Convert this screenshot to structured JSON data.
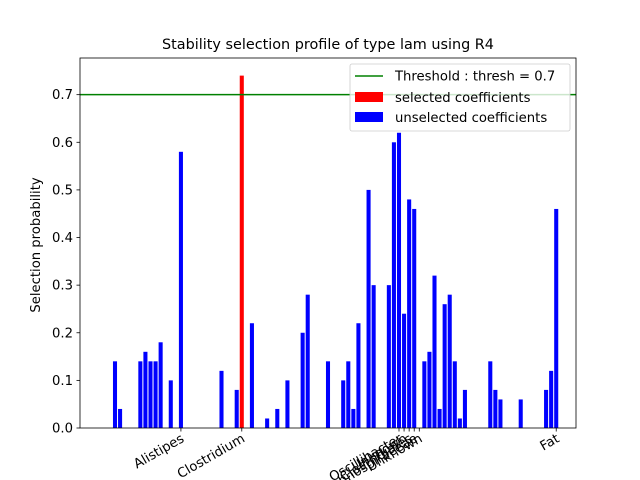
{
  "chart_data": {
    "type": "bar",
    "title": "Stability selection profile of type lam using R4",
    "xlabel": "",
    "ylabel": "Selection probability",
    "ylim": [
      0,
      0.777
    ],
    "xlim": [
      -6.9,
      90.9
    ],
    "yticks": [
      0.0,
      0.1,
      0.2,
      0.3,
      0.4,
      0.5,
      0.6,
      0.7
    ],
    "threshold": {
      "value": 0.7,
      "label": "Threshold : thresh = 0.7",
      "color": "#008000"
    },
    "legend_position": "top-right",
    "xtick_labels": [
      {
        "label": "Alistipes",
        "x": 13
      },
      {
        "label": "Clostridium",
        "x": 25
      },
      {
        "label": "Oscillibacter",
        "x": 56
      },
      {
        "label": "Unknown",
        "x": 57
      },
      {
        "label": "Clostridiales",
        "x": 58
      },
      {
        "label": "Lachnospiraceae",
        "x": 59
      },
      {
        "label": "Unknown",
        "x": 60
      },
      {
        "label": "Fat",
        "x": 87
      }
    ],
    "series": [
      {
        "name": "selected coefficients",
        "color": "#ff0000",
        "bars": [
          {
            "x": 25,
            "value": 0.74
          }
        ]
      },
      {
        "name": "unselected coefficients",
        "color": "#0000ff",
        "bars": [
          {
            "x": 0,
            "value": 0.14
          },
          {
            "x": 1,
            "value": 0.04
          },
          {
            "x": 5,
            "value": 0.14
          },
          {
            "x": 6,
            "value": 0.16
          },
          {
            "x": 7,
            "value": 0.14
          },
          {
            "x": 8,
            "value": 0.14
          },
          {
            "x": 9,
            "value": 0.18
          },
          {
            "x": 11,
            "value": 0.1
          },
          {
            "x": 13,
            "value": 0.58
          },
          {
            "x": 21,
            "value": 0.12
          },
          {
            "x": 24,
            "value": 0.08
          },
          {
            "x": 27,
            "value": 0.22
          },
          {
            "x": 30,
            "value": 0.02
          },
          {
            "x": 32,
            "value": 0.04
          },
          {
            "x": 34,
            "value": 0.1
          },
          {
            "x": 37,
            "value": 0.2
          },
          {
            "x": 38,
            "value": 0.28
          },
          {
            "x": 42,
            "value": 0.14
          },
          {
            "x": 45,
            "value": 0.1
          },
          {
            "x": 46,
            "value": 0.14
          },
          {
            "x": 47,
            "value": 0.04
          },
          {
            "x": 48,
            "value": 0.22
          },
          {
            "x": 50,
            "value": 0.5
          },
          {
            "x": 51,
            "value": 0.3
          },
          {
            "x": 54,
            "value": 0.3
          },
          {
            "x": 55,
            "value": 0.6
          },
          {
            "x": 56,
            "value": 0.62
          },
          {
            "x": 57,
            "value": 0.24
          },
          {
            "x": 58,
            "value": 0.48
          },
          {
            "x": 59,
            "value": 0.46
          },
          {
            "x": 61,
            "value": 0.14
          },
          {
            "x": 62,
            "value": 0.16
          },
          {
            "x": 63,
            "value": 0.32
          },
          {
            "x": 64,
            "value": 0.04
          },
          {
            "x": 65,
            "value": 0.26
          },
          {
            "x": 66,
            "value": 0.28
          },
          {
            "x": 67,
            "value": 0.14
          },
          {
            "x": 68,
            "value": 0.02
          },
          {
            "x": 69,
            "value": 0.08
          },
          {
            "x": 74,
            "value": 0.14
          },
          {
            "x": 75,
            "value": 0.08
          },
          {
            "x": 76,
            "value": 0.06
          },
          {
            "x": 80,
            "value": 0.06
          },
          {
            "x": 85,
            "value": 0.08
          },
          {
            "x": 86,
            "value": 0.12
          },
          {
            "x": 87,
            "value": 0.46
          }
        ]
      }
    ]
  }
}
